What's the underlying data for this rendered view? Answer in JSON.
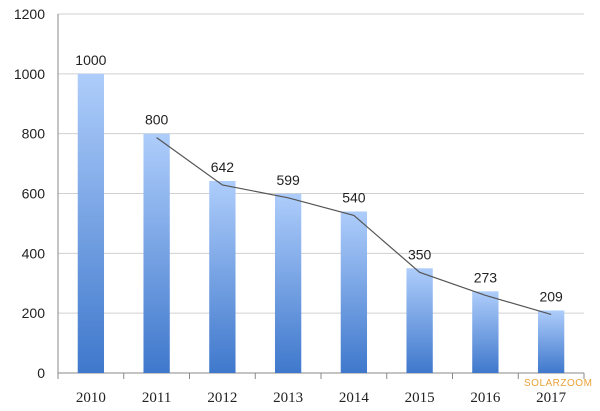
{
  "chart_data": {
    "type": "bar",
    "categories": [
      "2010",
      "2011",
      "2012",
      "2013",
      "2014",
      "2015",
      "2016",
      "2017"
    ],
    "values": [
      1000,
      800,
      642,
      599,
      540,
      350,
      273,
      209
    ],
    "ylim": [
      0,
      1200
    ],
    "yticks": [
      0,
      200,
      400,
      600,
      800,
      1000,
      1200
    ],
    "grid": true,
    "legend": "none",
    "trend_line": {
      "from_category": "2011",
      "to_category": "2017",
      "color": "#555555"
    },
    "bar_gradient": {
      "top": "#aecdfb",
      "bottom": "#3f78cc"
    },
    "watermark": "SOLARZOOM",
    "watermark_color": "#e8a23a"
  }
}
